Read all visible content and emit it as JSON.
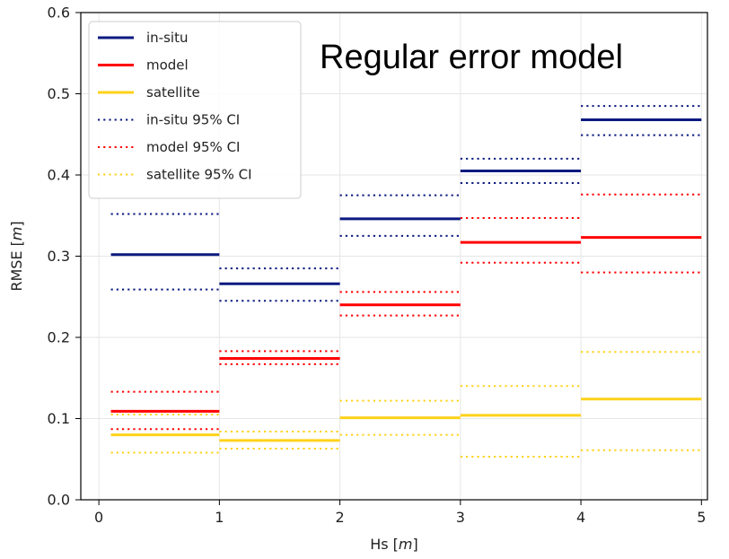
{
  "chart_data": {
    "type": "line",
    "title": "",
    "annotation": "Regular error model",
    "xlabel": "Hs [",
    "xlabel_unit": "m",
    "xlabel_close": "]",
    "ylabel": "RMSE [",
    "ylabel_unit": "m",
    "ylabel_close": "]",
    "xlim": [
      -0.15,
      5.05
    ],
    "ylim": [
      0.0,
      0.6
    ],
    "xticks": [
      0,
      1,
      2,
      3,
      4,
      5
    ],
    "xtick_labels": [
      "0",
      "1",
      "2",
      "3",
      "4",
      "5"
    ],
    "yticks": [
      0.0,
      0.1,
      0.2,
      0.3,
      0.4,
      0.5,
      0.6
    ],
    "ytick_labels": [
      "0.0",
      "0.1",
      "0.2",
      "0.3",
      "0.4",
      "0.5",
      "0.6"
    ],
    "grid": true,
    "legend_position": "upper-left",
    "bins": [
      [
        0.1,
        1.0
      ],
      [
        1.0,
        2.0
      ],
      [
        2.0,
        3.0
      ],
      [
        3.0,
        4.0
      ],
      [
        4.0,
        5.0
      ]
    ],
    "series": [
      {
        "name": "in-situ",
        "style": "solid",
        "color": "#0a1a80",
        "values": [
          0.302,
          0.266,
          0.346,
          0.405,
          0.468
        ]
      },
      {
        "name": "model",
        "style": "solid",
        "color": "#ff0000",
        "values": [
          0.109,
          0.174,
          0.24,
          0.317,
          0.323
        ]
      },
      {
        "name": "satellite",
        "style": "solid",
        "color": "#ffd21a",
        "values": [
          0.08,
          0.073,
          0.101,
          0.104,
          0.124
        ]
      },
      {
        "name": "in-situ 95% CI",
        "style": "dotted",
        "color": "#0a1a80",
        "lower": [
          0.259,
          0.245,
          0.325,
          0.39,
          0.449
        ],
        "upper": [
          0.352,
          0.285,
          0.375,
          0.42,
          0.485
        ]
      },
      {
        "name": "model 95% CI",
        "style": "dotted",
        "color": "#ff0000",
        "lower": [
          0.087,
          0.167,
          0.227,
          0.292,
          0.28
        ],
        "upper": [
          0.133,
          0.183,
          0.256,
          0.347,
          0.376
        ]
      },
      {
        "name": "satellite 95% CI",
        "style": "dotted",
        "color": "#ffd21a",
        "lower": [
          0.058,
          0.063,
          0.08,
          0.053,
          0.061
        ],
        "upper": [
          0.105,
          0.084,
          0.122,
          0.14,
          0.182
        ]
      }
    ]
  }
}
